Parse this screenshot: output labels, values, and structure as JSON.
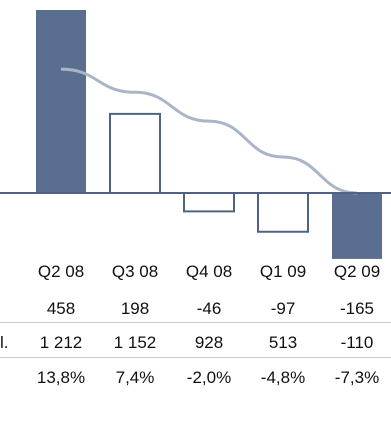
{
  "chart_data": {
    "type": "bar",
    "categories": [
      "Q2 08",
      "Q3 08",
      "Q4 08",
      "Q1 09",
      "Q2 09"
    ],
    "values": [
      458,
      198,
      -46,
      -97,
      -165
    ],
    "bar_styles": [
      "filled",
      "outline",
      "outline",
      "outline",
      "filled"
    ],
    "trend_line": [
      310,
      252,
      180,
      90,
      0
    ],
    "ylim": [
      -190,
      480
    ],
    "title": "",
    "xlabel": "",
    "ylabel": ""
  },
  "table": {
    "rows": [
      {
        "label": "",
        "values": [
          "458",
          "198",
          "-46",
          "-97",
          "-165"
        ]
      },
      {
        "label": "l.",
        "values": [
          "1 212",
          "1 152",
          "928",
          "513",
          "-110"
        ]
      },
      {
        "label": "",
        "values": [
          "13,8%",
          "7,4%",
          "-2,0%",
          "-4,8%",
          "-7,3%"
        ]
      }
    ]
  },
  "colors": {
    "bar_fill": "#5a6f8f",
    "bar_outline": "#4f6485",
    "trend": "#a9b5c8",
    "axis": "#4f6485"
  }
}
